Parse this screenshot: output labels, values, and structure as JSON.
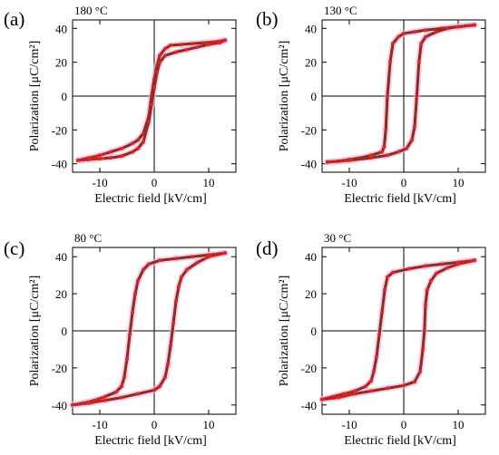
{
  "figure": {
    "panel_labels": [
      "(a)",
      "(b)",
      "(c)",
      "(d)"
    ]
  },
  "colors": {
    "branch_dark": "#8b2e1c",
    "branch_red": "#e8231f",
    "halo": "#f3b6e6",
    "axis": "#000000"
  },
  "chart_data": [
    {
      "type": "scatter",
      "panel": "(a)",
      "title": "180 °C",
      "xlabel": "Electric field [kV/cm]",
      "ylabel": "Polarization [μC/cm²]",
      "xlim": [
        -15,
        15
      ],
      "ylim": [
        -45,
        45
      ],
      "xticks": [
        -10,
        0,
        10
      ],
      "yticks": [
        -40,
        -20,
        0,
        20,
        40
      ],
      "series": [
        {
          "role": "decreasing-field branch",
          "x": [
            13,
            11,
            9,
            7,
            5,
            3,
            2,
            1,
            0.5,
            0,
            -0.5,
            -1,
            -2,
            -3,
            -4,
            -6,
            -8,
            -10,
            -12,
            -14
          ],
          "y": [
            33,
            32,
            31.5,
            31,
            30.5,
            30,
            28,
            24,
            18,
            10,
            0,
            -12,
            -22,
            -26,
            -28,
            -31,
            -33,
            -35,
            -36.5,
            -38
          ]
        },
        {
          "role": "increasing-field branch",
          "x": [
            -14,
            -12,
            -10,
            -8,
            -6,
            -4,
            -3,
            -2,
            -1,
            -0.5,
            0,
            0.5,
            1,
            2,
            4,
            6,
            8,
            10,
            12,
            13
          ],
          "y": [
            -38,
            -37.5,
            -37,
            -36.5,
            -35.5,
            -33,
            -31,
            -27,
            -15,
            -5,
            5,
            14,
            20,
            24,
            26,
            27.5,
            29,
            30.5,
            31.5,
            33
          ]
        }
      ]
    },
    {
      "type": "scatter",
      "panel": "(b)",
      "title": "130 °C",
      "xlabel": "Electric field [kV/cm]",
      "ylabel": "Polarization [μC/cm²]",
      "xlim": [
        -15,
        15
      ],
      "ylim": [
        -45,
        45
      ],
      "xticks": [
        -10,
        0,
        10
      ],
      "yticks": [
        -40,
        -20,
        0,
        20,
        40
      ],
      "series": [
        {
          "role": "decreasing-field branch",
          "x": [
            13,
            10,
            7,
            4,
            2,
            0,
            -1,
            -2,
            -2.5,
            -3,
            -3.3,
            -3.6,
            -4,
            -6,
            -8,
            -10,
            -12,
            -14
          ],
          "y": [
            42,
            41,
            40,
            39,
            38,
            37,
            35,
            31,
            20,
            0,
            -20,
            -30,
            -33,
            -35,
            -36.5,
            -37.5,
            -38.5,
            -39
          ]
        },
        {
          "role": "increasing-field branch",
          "x": [
            -14,
            -10,
            -6,
            -3,
            -1,
            0.5,
            1.5,
            2,
            2.4,
            2.8,
            3.2,
            4,
            6,
            8,
            10,
            13
          ],
          "y": [
            -39,
            -38,
            -36.5,
            -35,
            -33,
            -31,
            -26,
            -18,
            0,
            20,
            31,
            35,
            38,
            40,
            41,
            42
          ]
        }
      ]
    },
    {
      "type": "scatter",
      "panel": "(c)",
      "title": "80 °C",
      "xlabel": "Electric field [kV/cm]",
      "ylabel": "Polarization [μC/cm²]",
      "xlim": [
        -15,
        15
      ],
      "ylim": [
        -45,
        45
      ],
      "xticks": [
        -10,
        0,
        10
      ],
      "yticks": [
        -40,
        -20,
        0,
        20,
        40
      ],
      "series": [
        {
          "role": "decreasing-field branch",
          "x": [
            13,
            10,
            7,
            4,
            1,
            -1,
            -2,
            -3,
            -3.5,
            -4,
            -4.5,
            -5,
            -5.5,
            -6,
            -7,
            -9,
            -11,
            -13,
            -15
          ],
          "y": [
            42,
            41,
            40,
            39,
            38,
            36,
            33,
            27,
            20,
            10,
            -2,
            -15,
            -25,
            -30,
            -33,
            -35.5,
            -37.5,
            -39,
            -40
          ]
        },
        {
          "role": "increasing-field branch",
          "x": [
            -15,
            -12,
            -9,
            -6,
            -3,
            0,
            1,
            2,
            2.5,
            3,
            3.5,
            4,
            4.5,
            5,
            6,
            8,
            10,
            13
          ],
          "y": [
            -40,
            -39,
            -37.5,
            -36,
            -34,
            -32,
            -30,
            -25,
            -18,
            -8,
            4,
            16,
            24,
            29,
            33,
            37,
            40,
            42
          ]
        }
      ]
    },
    {
      "type": "scatter",
      "panel": "(d)",
      "title": "30 °C",
      "xlabel": "Electric field [kV/cm]",
      "ylabel": "Polarization [μC/cm²]",
      "xlim": [
        -15,
        15
      ],
      "ylim": [
        -45,
        45
      ],
      "xticks": [
        -10,
        0,
        10
      ],
      "yticks": [
        -40,
        -20,
        0,
        20,
        40
      ],
      "series": [
        {
          "role": "decreasing-field branch",
          "x": [
            13,
            10,
            7,
            4,
            1,
            -2,
            -3,
            -3.5,
            -4,
            -4.5,
            -5,
            -5.5,
            -6,
            -7,
            -9,
            -11,
            -13,
            -15
          ],
          "y": [
            38,
            37,
            36,
            35,
            33.5,
            31.5,
            29,
            22,
            10,
            -2,
            -14,
            -22,
            -27,
            -30,
            -32.5,
            -34,
            -35.5,
            -37
          ]
        },
        {
          "role": "increasing-field branch",
          "x": [
            -15,
            -12,
            -9,
            -6,
            -3,
            0,
            2,
            3,
            3.5,
            3.8,
            4,
            4.3,
            5,
            6,
            8,
            10,
            13
          ],
          "y": [
            -37,
            -36,
            -34,
            -32.5,
            -31,
            -29.5,
            -27.5,
            -22,
            -10,
            0,
            14,
            22,
            27,
            31,
            34,
            36,
            38
          ]
        }
      ]
    }
  ]
}
